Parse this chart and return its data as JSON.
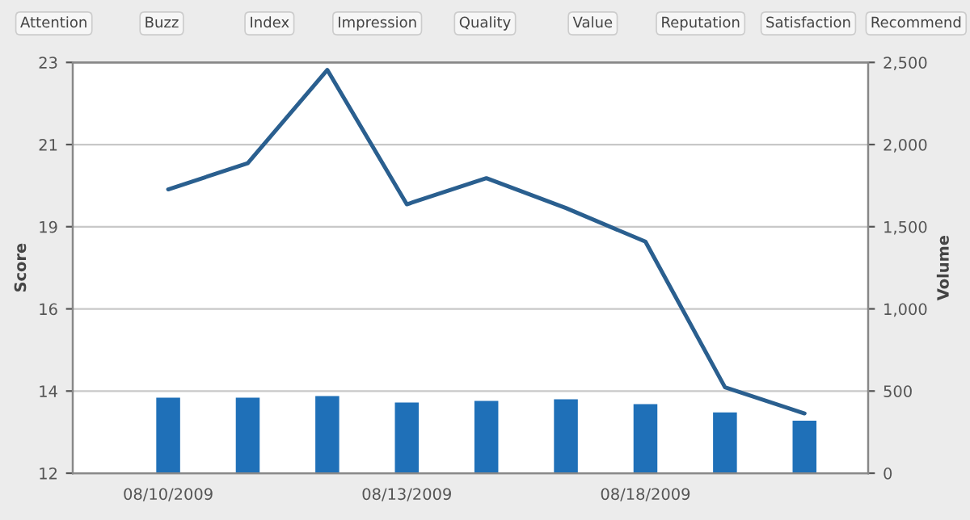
{
  "chart_data": {
    "type": "bar",
    "categories": [
      "08/10/2009",
      null,
      null,
      "08/13/2009",
      null,
      null,
      "08/18/2009",
      null,
      null
    ],
    "series": [
      {
        "axis": "y2",
        "color": "#1f70b8",
        "values": [
          460,
          460,
          470,
          430,
          440,
          450,
          420,
          370,
          320
        ]
      },
      {
        "type": "line",
        "color": "#2a5f8f",
        "values": [
          19.6,
          20.3,
          22.8,
          19.2,
          19.9,
          19.1,
          18.2,
          14.3,
          13.6
        ]
      }
    ],
    "ylabel": "Score",
    "y2label": "Volume",
    "ylim": [
      12,
      23
    ],
    "yticks": [
      12,
      {
        "value": 14.2,
        "label": "14"
      },
      {
        "value": 16.4,
        "label": "16"
      },
      {
        "value": 18.6,
        "label": "19"
      },
      {
        "value": 20.8,
        "label": "21"
      },
      23
    ],
    "y2lim": [
      0,
      2500
    ],
    "y2ticks": [
      {
        "value": 0,
        "label": "0"
      },
      {
        "value": 500,
        "label": "500"
      },
      {
        "value": 1000,
        "label": "1,000"
      },
      {
        "value": 1500,
        "label": "1,500"
      },
      {
        "value": 2000,
        "label": "2,000"
      },
      {
        "value": 2500,
        "label": "2,500"
      }
    ],
    "grid": "y",
    "legend": false,
    "marker": "none",
    "line_style": "solid",
    "annotations": [
      "Attention",
      "Buzz",
      "Index",
      "Impression",
      "Quality",
      "Value",
      "Reputation",
      "Satisfaction",
      "Recommend"
    ]
  }
}
